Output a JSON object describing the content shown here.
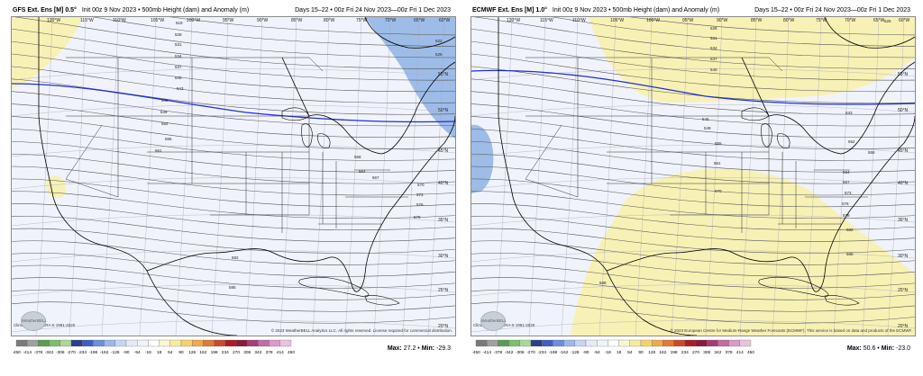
{
  "panels": [
    {
      "id": "gfs",
      "model": "GFS Ext. Ens [M] 0.5°",
      "init": "Init 00z 9 Nov 2023 • 500mb Height (dam) and Anomaly (m)",
      "valid": "Days 15–22 • 00z Fri 24 Nov 2023—00z Fri 1 Dec 2023",
      "lon_labels": [
        "120°W",
        "115°W",
        "110°W",
        "105°W",
        "100°W",
        "95°W",
        "90°W",
        "85°W",
        "80°W",
        "75°W",
        "70°W",
        "65°W",
        "60°W"
      ],
      "lat_labels": [
        "55°N",
        "50°N",
        "45°N",
        "40°N",
        "35°N",
        "30°N",
        "25°N",
        "20°N"
      ],
      "contour_labels": [
        "519",
        "522",
        "525",
        "528",
        "531",
        "534",
        "537",
        "540",
        "543",
        "546",
        "549",
        "552",
        "555",
        "558",
        "561",
        "564",
        "567",
        "570",
        "573",
        "576",
        "579",
        "582",
        "585"
      ],
      "clim_note": "Clima: ECMWF ERA-5 1991-2020",
      "copyright": "© 2023 WeatherBELL Analytics LLC. All rights reserved. License required for commercial distribution.",
      "logo_text": "WeatherBELL",
      "max_label": "Max:",
      "max": "27.2",
      "min_label": "Min:",
      "min": "-29.3"
    },
    {
      "id": "ecmwf",
      "model": "ECMWF Ext. Ens [M] 1.0°",
      "init": "Init 00z 9 Nov 2023 • 500mb Height (dam) and Anomaly (m)",
      "valid": "Days 15–22 • 00z Fri 24 Nov 2023—00z Fri 1 Dec 2023",
      "lon_labels": [
        "120°W",
        "115°W",
        "110°W",
        "105°W",
        "100°W",
        "95°W",
        "90°W",
        "85°W",
        "80°W",
        "75°W",
        "70°W",
        "65°W",
        "60°W"
      ],
      "lat_labels": [
        "55°N",
        "50°N",
        "45°N",
        "40°N",
        "35°N",
        "30°N",
        "25°N",
        "20°N"
      ],
      "contour_labels": [
        "525",
        "528",
        "531",
        "534",
        "537",
        "540",
        "543",
        "546",
        "549",
        "552",
        "555",
        "558",
        "561",
        "564",
        "567",
        "570",
        "573",
        "576",
        "579",
        "582",
        "585",
        "588"
      ],
      "clim_note": "Clima: ECMWF ERA-5 1991-2020",
      "copyright": "© 2023 European Centre for Medium-Range Weather Forecasts (ECMWF). This service is based on data and products of the ECMWF.",
      "logo_text": "WeatherBELL",
      "max_label": "Max:",
      "max": "50.6",
      "min_label": "Min:",
      "min": "-23.0"
    }
  ],
  "legend": {
    "ticks": [
      "-450",
      "-414",
      "-378",
      "-342",
      "-306",
      "-270",
      "-234",
      "-198",
      "-162",
      "-126",
      "-90",
      "-54",
      "-18",
      "18",
      "54",
      "90",
      "126",
      "162",
      "198",
      "234",
      "270",
      "306",
      "342",
      "378",
      "414",
      "450"
    ],
    "colors": [
      "#7a7a7a",
      "#a0a0a0",
      "#5a9c54",
      "#7cbf6a",
      "#a9d89a",
      "#2c3e8c",
      "#3f5fbf",
      "#6a8fdc",
      "#9db7ea",
      "#c6d5f3",
      "#e3ebf9",
      "#f0f3fb",
      "#ffffff",
      "#fbf7d3",
      "#f6ec9e",
      "#f5d36a",
      "#f0a94a",
      "#e07a34",
      "#c94a2a",
      "#a81e24",
      "#8a1a3c",
      "#a43c78",
      "#c26aa6",
      "#d99ac8",
      "#e9c3de"
    ]
  },
  "colors": {
    "positive_anomaly": "#f8f1b5",
    "negative_anomaly": "#9dbce8",
    "background": "#f0f3fb",
    "contour": "#555555",
    "thick_contour": "#1f2fd6",
    "coast": "#000000"
  }
}
